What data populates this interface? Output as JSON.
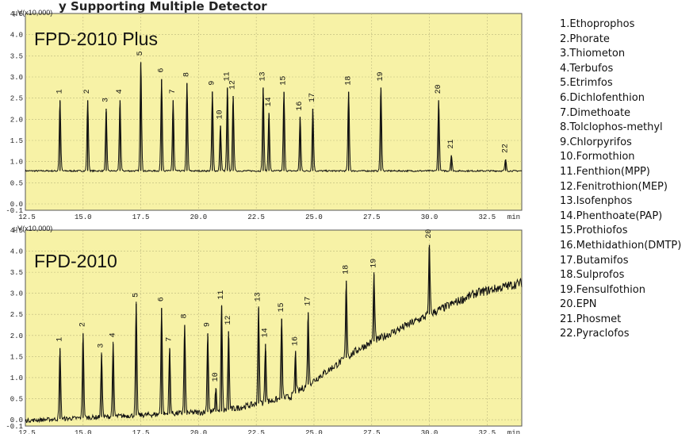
{
  "header_fragment": "y Supporting Multiple Detector",
  "legend": [
    "1.Ethoprophos",
    "2.Phorate",
    "3.Thiometon",
    "4.Terbufos",
    "5.Etrimfos",
    "6.Dichlofenthion",
    "7.Dimethoate",
    "8.Tolclophos-methyl",
    "9.Chlorpyrifos",
    "10.Formothion",
    "11.Fenthion(MPP)",
    "12.Fenitrothion(MEP)",
    "13.Isofenphos",
    "14.Phenthoate(PAP)",
    "15.Prothiofos",
    "16.Methidathion(DMTP)",
    "17.Butamifos",
    "18.Sulprofos",
    "19.Fensulfothion",
    "20.EPN",
    "21.Phosmet",
    "22.Pyraclofos"
  ],
  "colors": {
    "panel_bg": "#f7f2a6",
    "trace": "#111111",
    "text": "#111111"
  },
  "chart_data": [
    {
      "type": "line",
      "title": "FPD-2010 Plus",
      "unit_label": "μV(x10,000)",
      "xlabel": "min",
      "xlim": [
        12.5,
        34.0
      ],
      "ylim": [
        -0.15,
        4.5
      ],
      "x_ticks": [
        "12.5",
        "15.0",
        "17.5",
        "20.0",
        "22.5",
        "25.0",
        "27.5",
        "30.0",
        "32.5"
      ],
      "y_ticks": [
        "4.5",
        "4.0",
        "3.5",
        "3.0",
        "2.5",
        "2.0",
        "1.5",
        "1.0",
        "0.5",
        "0.0",
        "-0.1"
      ],
      "baseline": [
        [
          12.5,
          0.78
        ],
        [
          34.0,
          0.78
        ]
      ],
      "peaks": [
        {
          "label": "1",
          "x": 14.0,
          "y": 2.45
        },
        {
          "label": "2",
          "x": 15.2,
          "y": 2.45
        },
        {
          "label": "3",
          "x": 16.0,
          "y": 2.25
        },
        {
          "label": "4",
          "x": 16.6,
          "y": 2.45
        },
        {
          "label": "5",
          "x": 17.5,
          "y": 3.35
        },
        {
          "label": "6",
          "x": 18.4,
          "y": 2.95
        },
        {
          "label": "7",
          "x": 18.9,
          "y": 2.45
        },
        {
          "label": "8",
          "x": 19.5,
          "y": 2.85
        },
        {
          "label": "9",
          "x": 20.6,
          "y": 2.65
        },
        {
          "label": "10",
          "x": 20.95,
          "y": 1.85
        },
        {
          "label": "11",
          "x": 21.25,
          "y": 2.75
        },
        {
          "label": "12",
          "x": 21.5,
          "y": 2.55
        },
        {
          "label": "13",
          "x": 22.8,
          "y": 2.75
        },
        {
          "label": "14",
          "x": 23.05,
          "y": 2.15
        },
        {
          "label": "15",
          "x": 23.7,
          "y": 2.65
        },
        {
          "label": "16",
          "x": 24.4,
          "y": 2.05
        },
        {
          "label": "17",
          "x": 24.95,
          "y": 2.25
        },
        {
          "label": "18",
          "x": 26.5,
          "y": 2.65
        },
        {
          "label": "19",
          "x": 27.9,
          "y": 2.75
        },
        {
          "label": "20",
          "x": 30.4,
          "y": 2.45
        },
        {
          "label": "21",
          "x": 30.95,
          "y": 1.15
        },
        {
          "label": "22",
          "x": 33.3,
          "y": 1.05
        }
      ]
    },
    {
      "type": "line",
      "title": "FPD-2010",
      "unit_label": "μV(x10,000)",
      "xlabel": "min",
      "xlim": [
        12.5,
        34.0
      ],
      "ylim": [
        -0.15,
        4.5
      ],
      "x_ticks": [
        "12.5",
        "15.0",
        "17.5",
        "20.0",
        "22.5",
        "25.0",
        "27.5",
        "30.0",
        "32.5"
      ],
      "y_ticks": [
        "4.5",
        "4.0",
        "3.5",
        "3.0",
        "2.5",
        "2.0",
        "1.5",
        "1.0",
        "0.5",
        "0.0",
        "-0.1"
      ],
      "baseline": [
        [
          12.5,
          -0.02
        ],
        [
          21.0,
          0.2
        ],
        [
          24.0,
          0.55
        ],
        [
          27.0,
          1.7
        ],
        [
          30.0,
          2.5
        ],
        [
          32.0,
          3.0
        ],
        [
          34.0,
          3.25
        ]
      ],
      "peaks": [
        {
          "label": "1",
          "x": 14.0,
          "y": 1.7
        },
        {
          "label": "2",
          "x": 15.0,
          "y": 2.05
        },
        {
          "label": "3",
          "x": 15.8,
          "y": 1.55
        },
        {
          "label": "4",
          "x": 16.3,
          "y": 1.8
        },
        {
          "label": "5",
          "x": 17.3,
          "y": 2.75
        },
        {
          "label": "6",
          "x": 18.4,
          "y": 2.65
        },
        {
          "label": "7",
          "x": 18.75,
          "y": 1.7
        },
        {
          "label": "8",
          "x": 19.4,
          "y": 2.25
        },
        {
          "label": "9",
          "x": 20.4,
          "y": 2.05
        },
        {
          "label": "10",
          "x": 20.75,
          "y": 0.75
        },
        {
          "label": "11",
          "x": 21.0,
          "y": 2.7
        },
        {
          "label": "12",
          "x": 21.3,
          "y": 2.1
        },
        {
          "label": "13",
          "x": 22.6,
          "y": 2.65
        },
        {
          "label": "14",
          "x": 22.9,
          "y": 1.8
        },
        {
          "label": "15",
          "x": 23.6,
          "y": 2.4
        },
        {
          "label": "16",
          "x": 24.2,
          "y": 1.6
        },
        {
          "label": "17",
          "x": 24.75,
          "y": 2.55
        },
        {
          "label": "18",
          "x": 26.4,
          "y": 3.3
        },
        {
          "label": "19",
          "x": 27.6,
          "y": 3.45
        },
        {
          "label": "20",
          "x": 30.0,
          "y": 4.15
        }
      ]
    }
  ]
}
